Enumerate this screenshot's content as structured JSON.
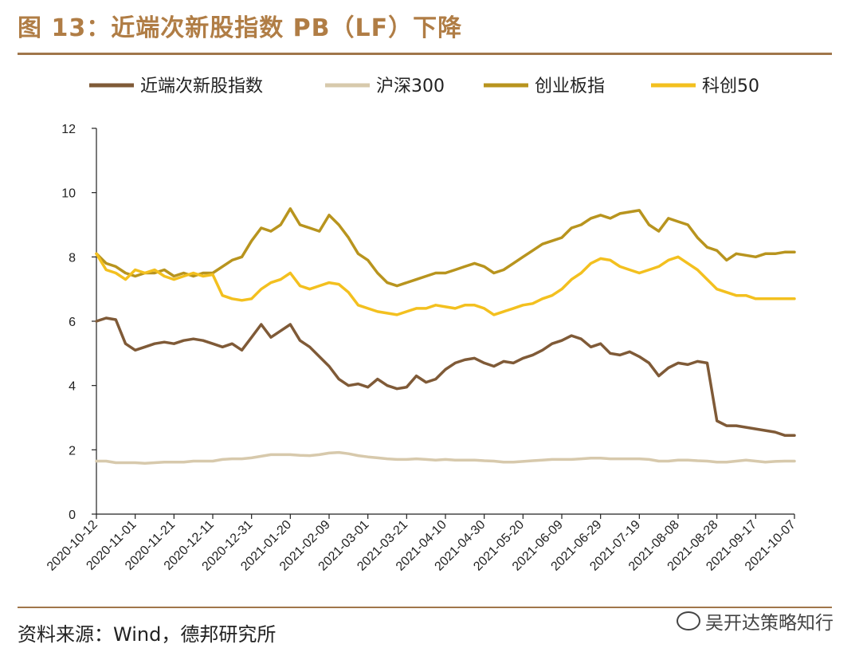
{
  "header": {
    "title": "图 13：近端次新股指数 PB（LF）下降"
  },
  "footer": {
    "source": "资料来源：Wind，德邦研究所",
    "watermark": "吴开达策略知行"
  },
  "colors": {
    "rule": "#a0764a",
    "title": "#b07d45"
  },
  "chart_data": {
    "type": "line",
    "title": "",
    "xlabel": "",
    "ylabel": "",
    "ylim": [
      0,
      12
    ],
    "yticks": [
      "0",
      "2",
      "4",
      "6",
      "8",
      "10",
      "12"
    ],
    "x_tick_labels": [
      "2020-10-12",
      "2020-11-01",
      "2020-11-21",
      "2020-12-11",
      "2020-12-31",
      "2021-01-20",
      "2021-02-09",
      "2021-03-01",
      "2021-03-21",
      "2021-04-10",
      "2021-04-30",
      "2021-05-20",
      "2021-06-09",
      "2021-06-29",
      "2021-07-19",
      "2021-08-08",
      "2021-08-28",
      "2021-09-17",
      "2021-10-07"
    ],
    "x": [
      "2020-10-12",
      "2020-10-17",
      "2020-10-22",
      "2020-10-27",
      "2020-11-01",
      "2020-11-06",
      "2020-11-11",
      "2020-11-16",
      "2020-11-21",
      "2020-11-26",
      "2020-12-01",
      "2020-12-06",
      "2020-12-11",
      "2020-12-16",
      "2020-12-21",
      "2020-12-26",
      "2020-12-31",
      "2021-01-05",
      "2021-01-10",
      "2021-01-15",
      "2021-01-20",
      "2021-01-25",
      "2021-01-30",
      "2021-02-04",
      "2021-02-09",
      "2021-02-14",
      "2021-02-19",
      "2021-02-24",
      "2021-03-01",
      "2021-03-06",
      "2021-03-11",
      "2021-03-16",
      "2021-03-21",
      "2021-03-26",
      "2021-03-31",
      "2021-04-05",
      "2021-04-10",
      "2021-04-15",
      "2021-04-20",
      "2021-04-25",
      "2021-04-30",
      "2021-05-05",
      "2021-05-10",
      "2021-05-15",
      "2021-05-20",
      "2021-05-25",
      "2021-05-30",
      "2021-06-04",
      "2021-06-09",
      "2021-06-14",
      "2021-06-19",
      "2021-06-24",
      "2021-06-29",
      "2021-07-04",
      "2021-07-09",
      "2021-07-14",
      "2021-07-19",
      "2021-07-24",
      "2021-07-29",
      "2021-08-03",
      "2021-08-08",
      "2021-08-13",
      "2021-08-18",
      "2021-08-23",
      "2021-08-28",
      "2021-09-02",
      "2021-09-07",
      "2021-09-12",
      "2021-09-17",
      "2021-09-22",
      "2021-09-27",
      "2021-10-02",
      "2021-10-07"
    ],
    "series": [
      {
        "name": "近端次新股指数",
        "color": "#7f5a37",
        "values": [
          6.0,
          6.1,
          6.05,
          5.3,
          5.1,
          5.2,
          5.3,
          5.35,
          5.3,
          5.4,
          5.45,
          5.4,
          5.3,
          5.2,
          5.3,
          5.1,
          5.5,
          5.9,
          5.5,
          5.7,
          5.9,
          5.4,
          5.2,
          4.9,
          4.6,
          4.2,
          4.0,
          4.05,
          3.95,
          4.2,
          4.0,
          3.9,
          3.95,
          4.3,
          4.1,
          4.2,
          4.5,
          4.7,
          4.8,
          4.85,
          4.7,
          4.6,
          4.75,
          4.7,
          4.85,
          4.95,
          5.1,
          5.3,
          5.4,
          5.55,
          5.45,
          5.2,
          5.3,
          5.0,
          4.95,
          5.05,
          4.9,
          4.7,
          4.3,
          4.55,
          4.7,
          4.65,
          4.75,
          4.7,
          2.9,
          2.75,
          2.75,
          2.7,
          2.65,
          2.6,
          2.55,
          2.45,
          2.45
        ]
      },
      {
        "name": "沪深300",
        "color": "#d7c9ac",
        "values": [
          1.65,
          1.65,
          1.6,
          1.6,
          1.6,
          1.58,
          1.6,
          1.62,
          1.62,
          1.62,
          1.65,
          1.65,
          1.65,
          1.7,
          1.72,
          1.72,
          1.75,
          1.8,
          1.85,
          1.85,
          1.85,
          1.83,
          1.82,
          1.85,
          1.9,
          1.92,
          1.88,
          1.82,
          1.78,
          1.75,
          1.72,
          1.7,
          1.7,
          1.72,
          1.7,
          1.68,
          1.7,
          1.68,
          1.68,
          1.68,
          1.66,
          1.65,
          1.62,
          1.62,
          1.64,
          1.66,
          1.68,
          1.7,
          1.7,
          1.7,
          1.72,
          1.74,
          1.74,
          1.72,
          1.72,
          1.72,
          1.72,
          1.7,
          1.65,
          1.65,
          1.68,
          1.68,
          1.66,
          1.65,
          1.62,
          1.62,
          1.65,
          1.68,
          1.65,
          1.62,
          1.64,
          1.65,
          1.65
        ]
      },
      {
        "name": "创业板指",
        "color": "#b8941e",
        "values": [
          8.1,
          7.8,
          7.7,
          7.5,
          7.4,
          7.5,
          7.5,
          7.6,
          7.4,
          7.5,
          7.4,
          7.5,
          7.5,
          7.7,
          7.9,
          8.0,
          8.5,
          8.9,
          8.8,
          9.0,
          9.5,
          9.0,
          8.9,
          8.8,
          9.3,
          9.0,
          8.6,
          8.1,
          7.9,
          7.5,
          7.2,
          7.1,
          7.2,
          7.3,
          7.4,
          7.5,
          7.5,
          7.6,
          7.7,
          7.8,
          7.7,
          7.5,
          7.6,
          7.8,
          8.0,
          8.2,
          8.4,
          8.5,
          8.6,
          8.9,
          9.0,
          9.2,
          9.3,
          9.2,
          9.35,
          9.4,
          9.45,
          9.0,
          8.8,
          9.2,
          9.1,
          9.0,
          8.6,
          8.3,
          8.2,
          7.9,
          8.1,
          8.05,
          8.0,
          8.1,
          8.1,
          8.15,
          8.15
        ]
      },
      {
        "name": "科创50",
        "color": "#f3c01f",
        "values": [
          8.1,
          7.6,
          7.5,
          7.3,
          7.6,
          7.5,
          7.6,
          7.4,
          7.3,
          7.4,
          7.5,
          7.4,
          7.45,
          6.8,
          6.7,
          6.65,
          6.7,
          7.0,
          7.2,
          7.3,
          7.5,
          7.1,
          7.0,
          7.1,
          7.2,
          7.15,
          6.9,
          6.5,
          6.4,
          6.3,
          6.25,
          6.2,
          6.3,
          6.4,
          6.4,
          6.5,
          6.45,
          6.4,
          6.5,
          6.5,
          6.4,
          6.2,
          6.3,
          6.4,
          6.5,
          6.55,
          6.7,
          6.8,
          7.0,
          7.3,
          7.5,
          7.8,
          7.95,
          7.9,
          7.7,
          7.6,
          7.5,
          7.6,
          7.7,
          7.9,
          8.0,
          7.8,
          7.6,
          7.3,
          7.0,
          6.9,
          6.8,
          6.8,
          6.7,
          6.7,
          6.7,
          6.7,
          6.7
        ]
      }
    ],
    "legend_position": "top"
  }
}
